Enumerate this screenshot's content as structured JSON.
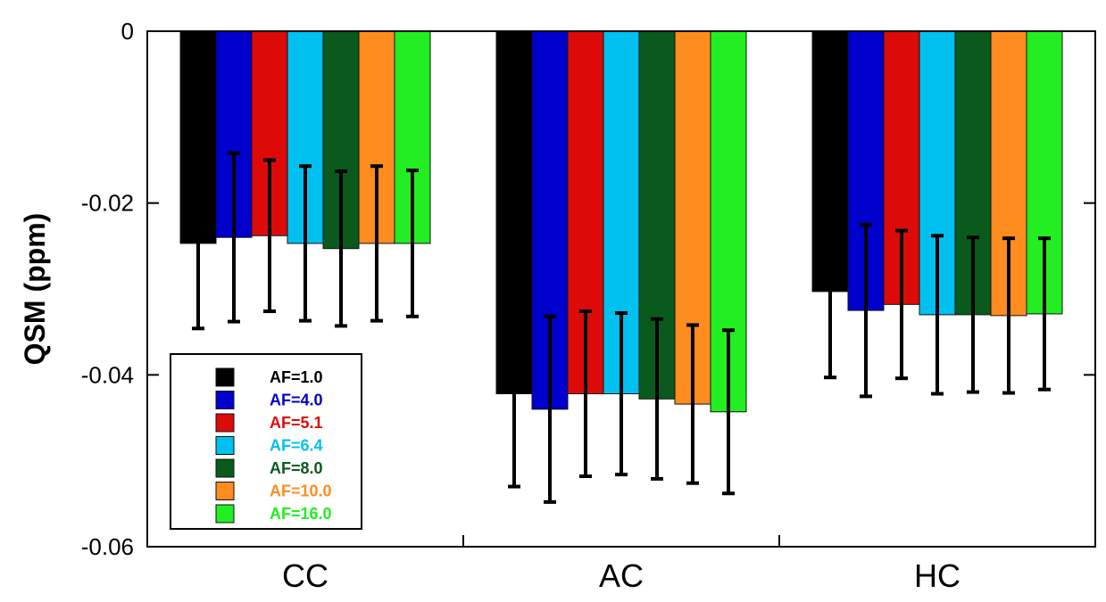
{
  "chart_data": {
    "type": "bar",
    "title": "",
    "xlabel": "",
    "ylabel": "QSM (ppm)",
    "ylim": [
      -0.06,
      0
    ],
    "yticks": [
      0,
      -0.02,
      -0.04,
      -0.06
    ],
    "ytick_labels": [
      "0",
      "-0.02",
      "-0.04",
      "-0.06"
    ],
    "grid": false,
    "legend_position": "bottom-left",
    "categories": [
      "CC",
      "AC",
      "HC"
    ],
    "series": [
      {
        "name": "AF=1.0",
        "color": "#000000",
        "values": [
          -0.0247,
          -0.0422,
          -0.0303
        ],
        "errors": [
          0.0099,
          0.0108,
          0.01
        ]
      },
      {
        "name": "AF=4.0",
        "color": "#0000cc",
        "values": [
          -0.024,
          -0.044,
          -0.0325
        ],
        "errors": [
          0.0098,
          0.0108,
          0.01
        ]
      },
      {
        "name": "AF=5.1",
        "color": "#dd0a0a",
        "values": [
          -0.0238,
          -0.0422,
          -0.0318
        ],
        "errors": [
          0.0088,
          0.0096,
          0.0086
        ]
      },
      {
        "name": "AF=6.4",
        "color": "#00c0f0",
        "values": [
          -0.0247,
          -0.0422,
          -0.033
        ],
        "errors": [
          0.009,
          0.0094,
          0.0092
        ]
      },
      {
        "name": "AF=8.0",
        "color": "#0a5a1e",
        "values": [
          -0.0253,
          -0.0428,
          -0.033
        ],
        "errors": [
          0.009,
          0.0093,
          0.009
        ]
      },
      {
        "name": "AF=10.0",
        "color": "#ff8c1e",
        "values": [
          -0.0247,
          -0.0434,
          -0.0331
        ],
        "errors": [
          0.009,
          0.0092,
          0.009
        ]
      },
      {
        "name": "AF=16.0",
        "color": "#22ee22",
        "values": [
          -0.0247,
          -0.0443,
          -0.0329
        ],
        "errors": [
          0.0085,
          0.0095,
          0.0088
        ]
      }
    ]
  }
}
